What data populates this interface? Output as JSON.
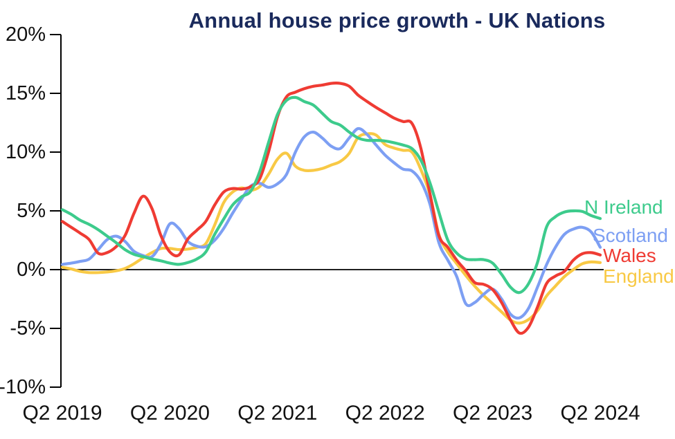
{
  "title": "Annual house price growth - UK Nations",
  "colors": {
    "title": "#1A2A5C",
    "axis": "#000000",
    "tick_text": "#111111"
  },
  "y_axis": {
    "tick_labels": [
      "20%",
      "15%",
      "10%",
      "5%",
      "0%",
      "-5%",
      "-10%"
    ],
    "tick_values": [
      20,
      15,
      10,
      5,
      0,
      -5,
      -10
    ]
  },
  "x_axis": {
    "tick_labels": [
      "Q2 2019",
      "Q2 2020",
      "Q2 2021",
      "Q2 2022",
      "Q2 2023",
      "Q2 2024"
    ]
  },
  "chart_data": {
    "type": "line",
    "title": "Annual house price growth - UK Nations",
    "xlabel": "",
    "ylabel": "",
    "unit": "percent year-on-year",
    "ylim": [
      -10,
      20
    ],
    "grid": false,
    "zero_line": true,
    "legend_position": "right-of-line-ends",
    "x_tick_labels": [
      "Q2 2019",
      "Q2 2020",
      "Q2 2021",
      "Q2 2022",
      "Q2 2023",
      "Q2 2024"
    ],
    "first_point": "Q2 2019",
    "last_point": "Q2 2024",
    "points_per_year": 12,
    "series": [
      {
        "name": "N Ireland",
        "color": "#3DCB8C",
        "values": [
          5.1,
          4.7,
          4.2,
          3.85,
          3.4,
          2.85,
          2.3,
          1.7,
          1.3,
          1.1,
          0.9,
          0.75,
          0.55,
          0.45,
          0.6,
          0.9,
          1.5,
          3.0,
          4.3,
          5.5,
          6.2,
          6.65,
          8.3,
          10.8,
          13.2,
          14.4,
          14.65,
          14.3,
          14.0,
          13.3,
          12.6,
          12.3,
          11.7,
          11.2,
          11.0,
          11.0,
          10.95,
          10.8,
          10.6,
          10.3,
          9.3,
          7.4,
          4.9,
          2.5,
          1.4,
          0.9,
          0.85,
          0.85,
          0.55,
          -0.4,
          -1.5,
          -1.95,
          -1.2,
          0.6,
          3.6,
          4.5,
          4.9,
          5.0,
          4.95,
          4.6,
          4.35
        ]
      },
      {
        "name": "Scotland",
        "color": "#7D9FF3",
        "values": [
          0.45,
          0.55,
          0.7,
          0.9,
          1.7,
          2.55,
          2.85,
          2.4,
          1.55,
          1.2,
          1.1,
          2.2,
          3.9,
          3.5,
          2.4,
          2.0,
          1.95,
          2.5,
          3.5,
          4.8,
          6.0,
          7.1,
          7.35,
          7.0,
          7.3,
          8.1,
          10.0,
          11.3,
          11.7,
          11.2,
          10.5,
          10.3,
          11.2,
          12.0,
          11.5,
          10.6,
          9.75,
          9.1,
          8.55,
          8.4,
          7.5,
          5.6,
          2.3,
          0.8,
          -0.6,
          -2.9,
          -2.8,
          -2.1,
          -1.65,
          -2.5,
          -3.8,
          -4.1,
          -3.3,
          -1.5,
          0.4,
          1.9,
          3.0,
          3.45,
          3.6,
          3.2,
          1.9
        ]
      },
      {
        "name": "Wales",
        "color": "#EF3B33",
        "values": [
          4.1,
          3.6,
          3.1,
          2.55,
          1.4,
          1.45,
          1.95,
          2.9,
          4.8,
          6.25,
          5.2,
          2.9,
          1.5,
          1.25,
          2.6,
          3.35,
          4.1,
          5.5,
          6.6,
          6.9,
          6.85,
          7.05,
          7.7,
          10.0,
          13.0,
          14.7,
          15.1,
          15.4,
          15.6,
          15.7,
          15.85,
          15.85,
          15.6,
          14.85,
          14.3,
          13.8,
          13.35,
          12.9,
          12.6,
          12.45,
          10.3,
          6.5,
          2.9,
          1.9,
          0.8,
          -0.1,
          -1.1,
          -1.25,
          -1.7,
          -2.8,
          -4.3,
          -5.4,
          -4.9,
          -3.2,
          -1.2,
          -0.55,
          -0.15,
          0.8,
          1.35,
          1.45,
          1.25
        ]
      },
      {
        "name": "England",
        "color": "#F8C945",
        "values": [
          0.2,
          0.05,
          -0.15,
          -0.25,
          -0.25,
          -0.2,
          -0.1,
          0.1,
          0.5,
          1.0,
          1.45,
          1.8,
          1.8,
          1.7,
          1.75,
          1.9,
          2.2,
          3.8,
          5.7,
          6.6,
          6.95,
          6.75,
          7.05,
          8.1,
          9.4,
          9.9,
          8.8,
          8.45,
          8.45,
          8.6,
          8.9,
          9.2,
          9.9,
          11.25,
          11.55,
          11.45,
          10.65,
          10.35,
          10.15,
          10.0,
          8.5,
          6.4,
          3.0,
          1.5,
          0.5,
          -0.5,
          -1.4,
          -2.2,
          -2.9,
          -3.6,
          -4.3,
          -4.55,
          -4.25,
          -3.5,
          -2.25,
          -1.4,
          -0.6,
          0.0,
          0.5,
          0.65,
          0.6
        ]
      }
    ]
  }
}
